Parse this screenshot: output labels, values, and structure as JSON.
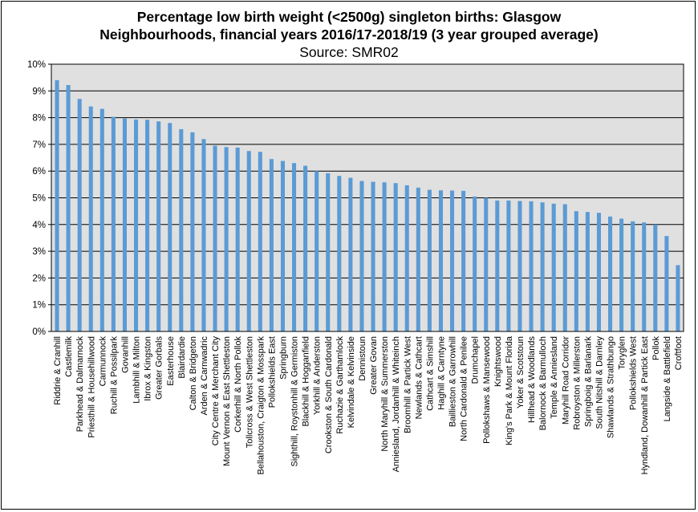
{
  "chart_data": {
    "type": "bar",
    "title_line1": "Percentage low birth weight (<2500g) singleton births: Glasgow",
    "title_line2": "Neighbourhoods, financial years 2016/17-2018/19 (3 year grouped average)",
    "subtitle": "Source: SMR02",
    "xlabel": "",
    "ylabel": "",
    "ylim": [
      0,
      10
    ],
    "yticks": [
      "0%",
      "1%",
      "2%",
      "3%",
      "4%",
      "5%",
      "6%",
      "7%",
      "8%",
      "9%",
      "10%"
    ],
    "grid": true,
    "legend": "none",
    "colors": {
      "bar": "#5b9bd5",
      "plot_bg": "#e0e0e0",
      "grid": "#000000"
    },
    "categories": [
      "Riddrie & Cranhill",
      "Castlemilk",
      "Parkhead & Dalmarnock",
      "Priesthill & Househillwood",
      "Carmunnock",
      "Ruchill & Possilpark",
      "Govanhill",
      "Lambhill & Milton",
      "Ibrox & Kingston",
      "Greater Gorbals",
      "Easterhouse",
      "Blairdardie",
      "Calton & Bridgeton",
      "Arden & Carnwadric",
      "City Centre & Merchant City",
      "Mount Vernon & East Shettleston",
      "Corkerhill & North Pollok",
      "Tollcross & West Shettleston",
      "Bellahouston, Craigton & Mosspark",
      "Pollokshields East",
      "Springburn",
      "Sighthill, Roystonhill & Germiston",
      "Blackhill & Hogganfield",
      "Yorkhill & Anderston",
      "Crookston & South Cardonald",
      "Ruchazie & Garthamlock",
      "Kelvindale & Kelvinside",
      "Dennistoun",
      "Greater Govan",
      "North Maryhill & Summerston",
      "Anniesland, Jordanhill & Whiteinch",
      "Broomhill & Partick West",
      "Newlands & Cathcart",
      "Cathcart & Simshill",
      "Haghill & Carntyne",
      "Baillieston & Garrowhill",
      "North Cardonald & Penilee",
      "Drumchapel",
      "Pollokshaws & Mansewood",
      "Knightswood",
      "King's Park & Mount Florida",
      "Yoker & Scotstoun",
      "Hillhead & Woodlands",
      "Balornock & Barmulloch",
      "Temple & Anniesland",
      "Maryhill Road Corridor",
      "Robroyston & Millerston",
      "Springboig & Barlanark",
      "South Nitshill & Darnley",
      "Shawlands & Strathbungo",
      "Toryglen",
      "Pollokshields West",
      "Hyndland, Dowanhill & Partick East",
      "Pollok",
      "Langside & Battlefield",
      "Croftfoot"
    ],
    "values": [
      9.4,
      9.22,
      8.7,
      8.42,
      8.33,
      8.03,
      7.97,
      7.93,
      7.92,
      7.86,
      7.8,
      7.57,
      7.45,
      7.2,
      6.95,
      6.9,
      6.88,
      6.75,
      6.72,
      6.45,
      6.38,
      6.3,
      6.2,
      6.0,
      5.92,
      5.82,
      5.75,
      5.63,
      5.6,
      5.58,
      5.55,
      5.47,
      5.38,
      5.3,
      5.28,
      5.27,
      5.26,
      5.05,
      5.0,
      4.9,
      4.9,
      4.88,
      4.87,
      4.83,
      4.78,
      4.76,
      4.5,
      4.47,
      4.44,
      4.3,
      4.22,
      4.12,
      4.08,
      4.0,
      3.57,
      2.48
    ]
  }
}
